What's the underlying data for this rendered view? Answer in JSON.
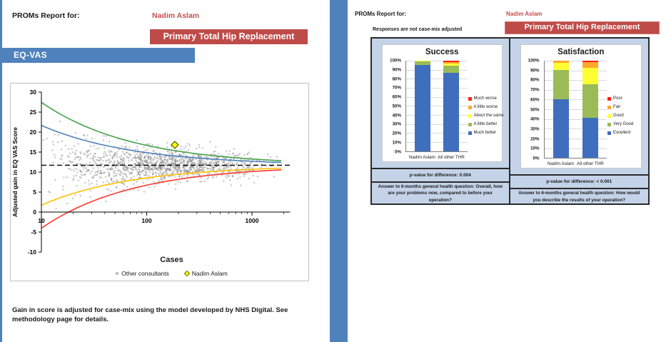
{
  "colors": {
    "accent_blue": "#4F81BD",
    "accent_red": "#BE4B48",
    "name_red": "#C0504D",
    "panel_blue": "#C4D3E8",
    "bar_blue": "#3F6EBF",
    "bar_green": "#9BBB59",
    "bar_yellow": "#FFFF33",
    "bar_orange": "#FCA92C",
    "bar_red": "#FF1F14"
  },
  "left_page": {
    "report_label": "PROMs Report for:",
    "consultant_name": "Nadim Aslam",
    "procedure_banner": "Primary Total Hip Replacement",
    "section_banner": "EQ-VAS",
    "footnote": "Gain in score is adjusted for case-mix using the model developed by NHS Digital.  See methodology page for details."
  },
  "right_page": {
    "report_label": "PROMs Report for:",
    "consultant_name": "Nadim Aslam",
    "note": "Responses are not case-mix adjusted",
    "procedure_banner": "Primary Total Hip Replacement"
  },
  "chart_data": [
    {
      "type": "scatter",
      "subtype": "funnel-plot",
      "title": "EQ-VAS funnel plot",
      "xlabel": "Cases",
      "ylabel": "Adjusted gain in EQ VAS Score",
      "x_scale": "log",
      "xlim": [
        10,
        2300
      ],
      "ylim": [
        -10,
        30
      ],
      "x_ticks": [
        10,
        100,
        1000
      ],
      "y_ticks": [
        30,
        25,
        20,
        15,
        10,
        5,
        0,
        -5,
        -10
      ],
      "grid": false,
      "mean": 11.7,
      "sigma": 16.1,
      "mean_line": {
        "value": 11.7,
        "style": "dashed",
        "color": "#000000"
      },
      "control_limits": [
        {
          "name": "upper 99.8% limit",
          "z": 3.09,
          "color": "#45A349"
        },
        {
          "name": "upper 95% limit",
          "z": 1.96,
          "color": "#4F81BD"
        },
        {
          "name": "lower 95% limit",
          "z": -1.96,
          "color": "#FFC000"
        },
        {
          "name": "lower 99.8% limit",
          "z": -3.09,
          "color": "#FF3B2F"
        }
      ],
      "highlight": {
        "label": "Nadim Aslam",
        "cases": 185,
        "value": 16.8,
        "marker": "diamond",
        "fill": "#FFFF00"
      },
      "scatter_series": {
        "label": "Other consultants",
        "marker_color": "#808080",
        "approx_count": 1400,
        "seed": 97,
        "spread": {
          "base_sd": 1.2,
          "funnel_sd": 11.5
        }
      },
      "legend": [
        "Other consultants",
        "Nadim Aslam"
      ],
      "legend_position": "bottom"
    },
    {
      "type": "bar",
      "stacked": true,
      "title": "Success",
      "categories": [
        "Nadim Aslam",
        "All other THR"
      ],
      "series": [
        {
          "name": "Much better",
          "color": "#3F6EBF",
          "values": [
            95,
            86.5
          ]
        },
        {
          "name": "A little better",
          "color": "#9BBB59",
          "values": [
            4.3,
            8
          ]
        },
        {
          "name": "About the same",
          "color": "#FFFF33",
          "values": [
            0.4,
            2.5
          ]
        },
        {
          "name": "A little worse",
          "color": "#FCA92C",
          "values": [
            0.2,
            1.5
          ]
        },
        {
          "name": "Much worse",
          "color": "#FF1F14",
          "values": [
            0.1,
            1.5
          ]
        }
      ],
      "ylim": [
        0,
        100
      ],
      "y_tick_step_pct": 10,
      "legend_position": "right",
      "legend_order_top_to_bottom": [
        "Much worse",
        "A little worse",
        "About the same",
        "A little better",
        "Much better"
      ],
      "p_value_text": "p-value for difference: 0.004",
      "question_text": "Answer to 6-months general health question: Overall, how are your problems now, compared to before your operation?"
    },
    {
      "type": "bar",
      "stacked": true,
      "title": "Satisfaction",
      "categories": [
        "Nadim Aslam",
        "All other THR"
      ],
      "series": [
        {
          "name": "Excellent",
          "color": "#3F6EBF",
          "values": [
            60.5,
            41.5
          ]
        },
        {
          "name": "Very Good",
          "color": "#9BBB59",
          "values": [
            30,
            34.5
          ]
        },
        {
          "name": "Good",
          "color": "#FFFF33",
          "values": [
            7,
            16.5
          ]
        },
        {
          "name": "Fair",
          "color": "#FCA92C",
          "values": [
            2.5,
            6
          ]
        },
        {
          "name": "Poor",
          "color": "#FF1F14",
          "values": [
            0,
            1.5
          ]
        }
      ],
      "ylim": [
        0,
        100
      ],
      "y_tick_step_pct": 10,
      "legend_position": "right",
      "legend_order_top_to_bottom": [
        "Poor",
        "Fair",
        "Good",
        "Very Good",
        "Excellent"
      ],
      "p_value_text": "p-value for difference: < 0.001",
      "question_text": "Answer to 6-months general health question: How would you describe the results of your operation?"
    }
  ]
}
